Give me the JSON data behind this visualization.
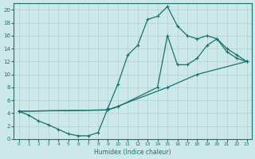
{
  "xlabel": "Humidex (Indice chaleur)",
  "xlim": [
    -0.5,
    23.5
  ],
  "ylim": [
    0,
    21
  ],
  "xticks": [
    0,
    1,
    2,
    3,
    4,
    5,
    6,
    7,
    8,
    9,
    10,
    11,
    12,
    13,
    14,
    15,
    16,
    17,
    18,
    19,
    20,
    21,
    22,
    23
  ],
  "yticks": [
    0,
    2,
    4,
    6,
    8,
    10,
    12,
    14,
    16,
    18,
    20
  ],
  "bg_color": "#cce8e8",
  "line_color": "#1a7070",
  "grid_color": "#b0d0d0",
  "line1_x": [
    0,
    1,
    2,
    3,
    4,
    5,
    6,
    7,
    8,
    9,
    10,
    11,
    12,
    13,
    14,
    15,
    16,
    17,
    18,
    19,
    20,
    21,
    22,
    23
  ],
  "line1_y": [
    4.3,
    3.7,
    2.8,
    2.2,
    1.5,
    0.8,
    0.5,
    0.5,
    1.0,
    4.8,
    8.5,
    13.0,
    14.5,
    18.5,
    19.0,
    20.5,
    17.5,
    16.0,
    15.5,
    16.0,
    15.5,
    14.0,
    13.0,
    12.0
  ],
  "line2_x": [
    0,
    9,
    10,
    14,
    15,
    16,
    17,
    18,
    19,
    20,
    21,
    22,
    23
  ],
  "line2_y": [
    4.3,
    4.5,
    5.0,
    8.0,
    16.0,
    11.5,
    11.5,
    12.5,
    14.5,
    15.5,
    13.5,
    12.5,
    12.0
  ],
  "line3_x": [
    0,
    9,
    15,
    18,
    23
  ],
  "line3_y": [
    4.3,
    4.5,
    8.0,
    10.0,
    12.0
  ]
}
